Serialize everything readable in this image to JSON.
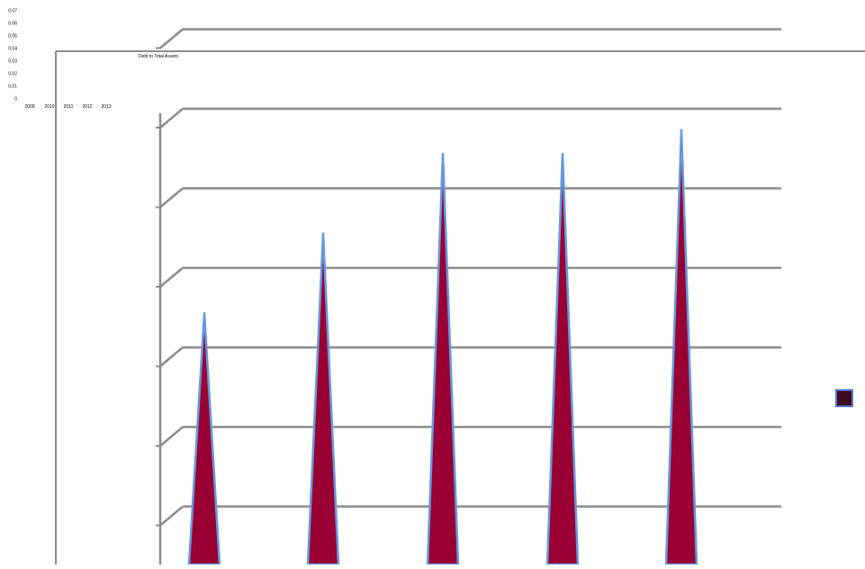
{
  "chart_data": {
    "type": "area",
    "title": "Debt to Total Assets",
    "xlabel": "",
    "ylabel": "",
    "categories": [
      "2009",
      "2010",
      "2011",
      "2012",
      "2013"
    ],
    "series": [
      {
        "name": "",
        "values": [
          0.035,
          0.045,
          0.055,
          0.055,
          0.058
        ]
      }
    ],
    "ylim": [
      0,
      0.07
    ],
    "y_ticks": [
      "0",
      "0.01",
      "0.02",
      "0.03",
      "0.04",
      "0.05",
      "0.06",
      "0.07"
    ],
    "grid": true,
    "legend_position": "right",
    "colors": {
      "series_fill": "#990033",
      "series_edge": "#6699dd",
      "gridline": "#8c8c8c",
      "axis": "#8c8c8c",
      "legend_swatch": "#3d0a1e",
      "legend_swatch_border": "#5577cc",
      "text": "#000000"
    }
  }
}
